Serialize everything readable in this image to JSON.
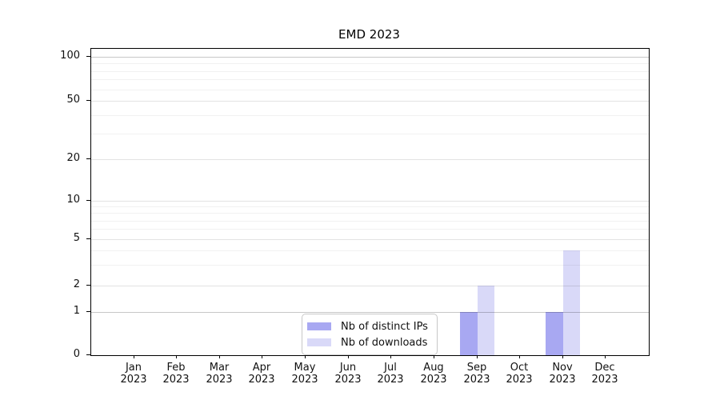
{
  "chart_data": {
    "type": "bar",
    "title": "EMD 2023",
    "categories": [
      "Jan",
      "Feb",
      "Mar",
      "Apr",
      "May",
      "Jun",
      "Jul",
      "Aug",
      "Sep",
      "Oct",
      "Nov",
      "Dec"
    ],
    "x_tick_second_line": "2023",
    "series": [
      {
        "name": "Nb of distinct IPs",
        "color": "#a8a8f2",
        "values": [
          0,
          0,
          0,
          0,
          0,
          0,
          0,
          0,
          1,
          0,
          1,
          0
        ]
      },
      {
        "name": "Nb of downloads",
        "color": "#d9d9f8",
        "values": [
          0,
          0,
          0,
          0,
          0,
          0,
          0,
          0,
          2,
          0,
          4,
          0
        ]
      }
    ],
    "y_axis": {
      "scale": "symlog",
      "tick_labels": [
        "0",
        "1",
        "2",
        "5",
        "10",
        "20",
        "50",
        "100"
      ],
      "tick_values": [
        0,
        1,
        2,
        5,
        10,
        20,
        50,
        100
      ],
      "minor_gridline_values": [
        3,
        4,
        6,
        7,
        8,
        9,
        30,
        40,
        60,
        70,
        80,
        90
      ],
      "emphasized_gridline_values": [
        1,
        100
      ]
    },
    "grid": "both",
    "legend_position": "lower-center"
  }
}
